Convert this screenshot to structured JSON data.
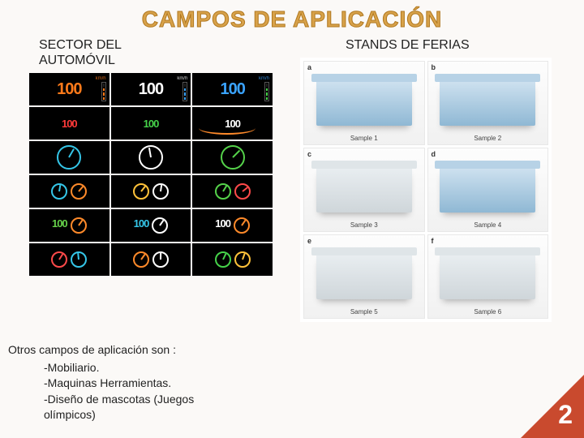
{
  "title": "CAMPOS DE APLICACIÓN",
  "left": {
    "heading_l1": "SECTOR DEL",
    "heading_l2": "AUTOMÓVIL",
    "dashboards": [
      {
        "num": "100",
        "unit": "km/h",
        "fg": "#ff7a1a",
        "bar": "#ff7a1a",
        "idx": "1"
      },
      {
        "num": "100",
        "unit": "km/h",
        "fg": "#ffffff",
        "bar": "#3aa3ff",
        "idx": "2"
      },
      {
        "num": "100",
        "unit": "km/h",
        "fg": "#3aa3ff",
        "bar": "#46d24a",
        "idx": "3"
      },
      {
        "num": "100",
        "unit": "",
        "fg": "#ff3a3a",
        "bar": "",
        "idx": "4",
        "wide": true
      },
      {
        "num": "100",
        "unit": "",
        "fg": "#46d24a",
        "bar": "",
        "idx": "5",
        "wide": true
      },
      {
        "num": "100",
        "unit": "",
        "fg": "#ffffff",
        "bar": "",
        "idx": "6",
        "wide": true,
        "arc": "#ff8a2a"
      },
      {
        "gauge": true,
        "fg": "#35c6e8",
        "ang": "30deg",
        "idx": "7"
      },
      {
        "gauge": true,
        "fg": "#ffffff",
        "ang": "-10deg",
        "idx": "8"
      },
      {
        "gauge": true,
        "fg": "#55d24a",
        "ang": "45deg",
        "idx": "9"
      },
      {
        "dual": true,
        "fg1": "#35c6e8",
        "fg2": "#ff8a2a",
        "idx": "10"
      },
      {
        "dual": true,
        "fg1": "#ffc23a",
        "fg2": "#ffffff",
        "idx": "11"
      },
      {
        "dual": true,
        "fg1": "#55d24a",
        "fg2": "#ff4a4a",
        "idx": "12"
      },
      {
        "mix": true,
        "num": "100",
        "fg": "#66d24a",
        "gfg": "#ff8a2a",
        "idx": "13"
      },
      {
        "mix": true,
        "num": "100",
        "fg": "#35c6e8",
        "gfg": "#ffffff",
        "idx": "14"
      },
      {
        "mix": true,
        "num": "100",
        "fg": "#ffffff",
        "gfg": "#ff8a2a",
        "idx": "15"
      },
      {
        "dual": true,
        "fg1": "#ff4a4a",
        "fg2": "#35c6e8",
        "idx": "16"
      },
      {
        "dual": true,
        "fg1": "#ff8a2a",
        "fg2": "#ffffff",
        "idx": "17"
      },
      {
        "dual": true,
        "fg1": "#46d24a",
        "fg2": "#ffc23a",
        "idx": "18"
      }
    ]
  },
  "right": {
    "heading": "STANDS DE FERIAS",
    "stands": [
      {
        "tag": "a",
        "caption": "Sample 1",
        "variant": "blue"
      },
      {
        "tag": "b",
        "caption": "Sample 2",
        "variant": "blue"
      },
      {
        "tag": "c",
        "caption": "Sample 3",
        "variant": "grey"
      },
      {
        "tag": "d",
        "caption": "Sample 4",
        "variant": "blue"
      },
      {
        "tag": "e",
        "caption": "Sample 5",
        "variant": "grey"
      },
      {
        "tag": "f",
        "caption": "Sample 6",
        "variant": "grey"
      }
    ]
  },
  "notes": {
    "intro": "Otros campos de aplicación son :",
    "items": [
      "-Mobiliario.",
      "-Maquinas Herramientas.",
      "-Diseño de mascotas (Juegos",
      "olímpicos)"
    ]
  },
  "page_number": "2",
  "badge_color": "#c94a2e"
}
